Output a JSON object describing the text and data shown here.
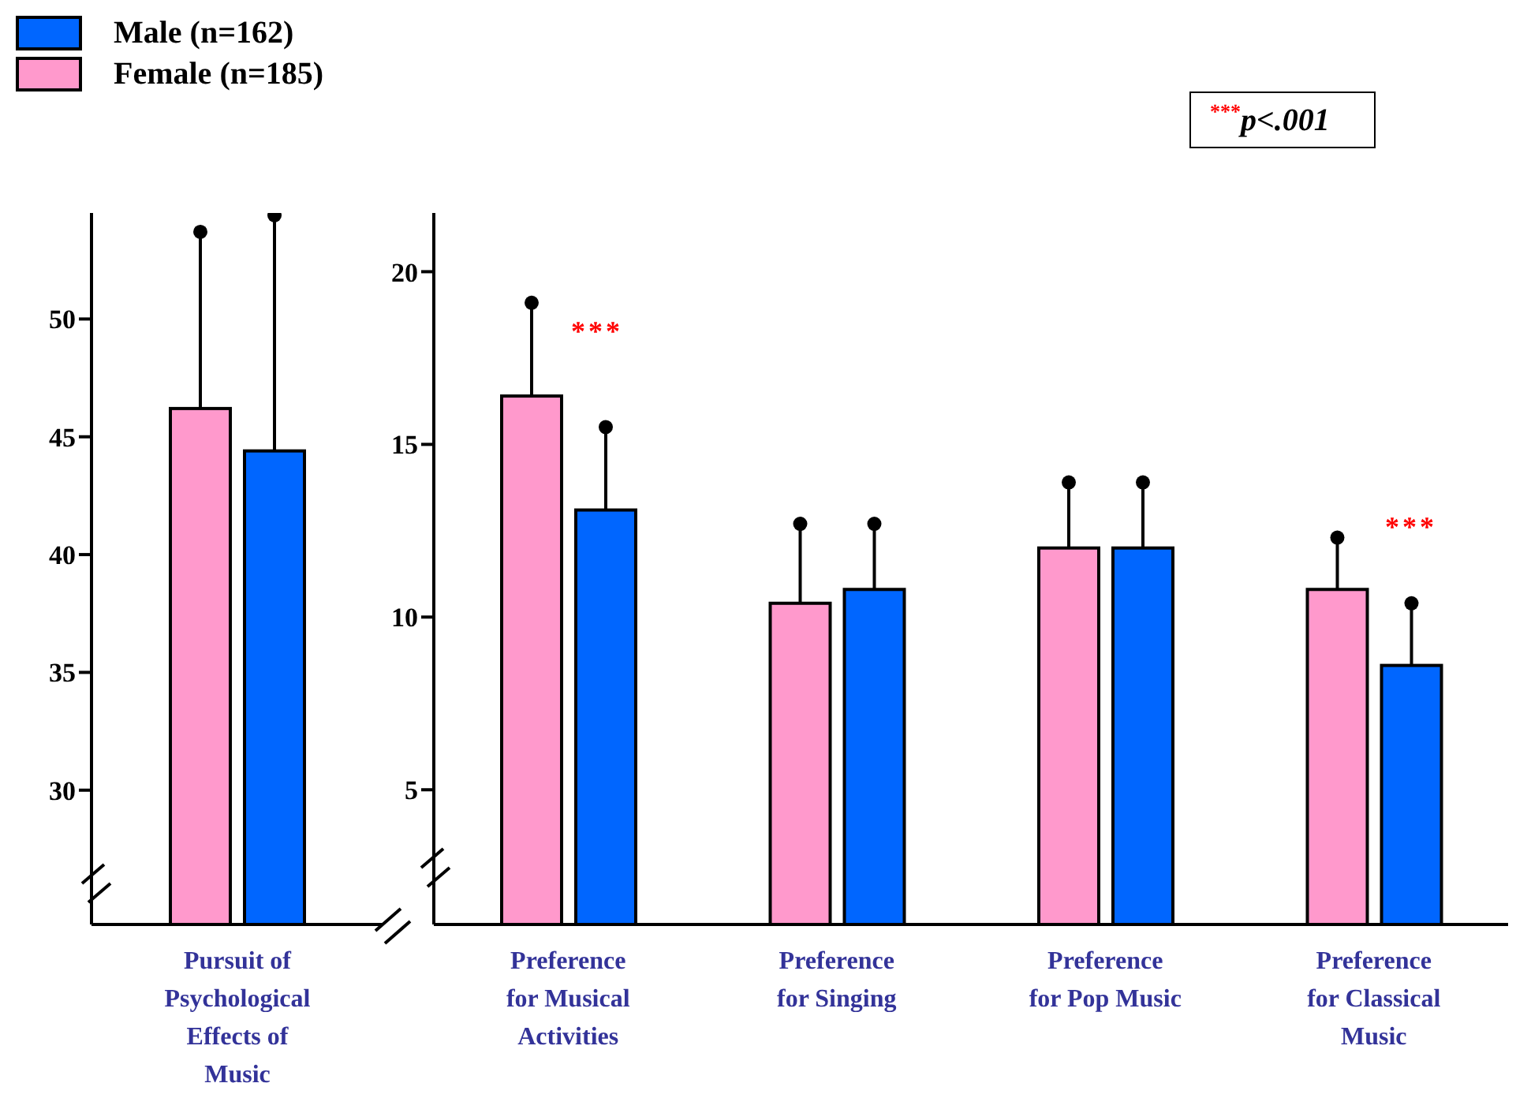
{
  "chart_data": [
    {
      "type": "bar",
      "categories": [
        "Pursuit of Psychological Effects of Music"
      ],
      "series": [
        {
          "name": "Female (n=185)",
          "color": "#ff99cc",
          "values": [
            46.2
          ],
          "errors": [
            7.5
          ]
        },
        {
          "name": "Male (n=162)",
          "color": "#0066ff",
          "values": [
            44.4
          ],
          "errors": [
            10.0
          ]
        }
      ],
      "ylim": [
        24.3,
        54.5
      ],
      "yticks": [
        30,
        35,
        40,
        45,
        50
      ],
      "legend": "top left"
    },
    {
      "type": "bar",
      "categories": [
        "Preference for Musical Activities",
        "Preference for Singing",
        "Preference for Pop Music",
        "Preference for Classical Music"
      ],
      "series": [
        {
          "color": "#ff99cc",
          "values": [
            16.4,
            10.4,
            12.0,
            10.8
          ],
          "errors": [
            2.7,
            2.3,
            1.9,
            1.5
          ]
        },
        {
          "color": "#0066ff",
          "values": [
            13.1,
            10.8,
            12.0,
            8.6
          ],
          "errors": [
            2.4,
            1.9,
            1.9,
            1.8
          ]
        }
      ],
      "ylim": [
        1.1,
        21.7
      ],
      "yticks": [
        5,
        10,
        15,
        20
      ],
      "annotations": [
        "***",
        "***",
        "$^{***}$p<.001"
      ]
    }
  ]
}
